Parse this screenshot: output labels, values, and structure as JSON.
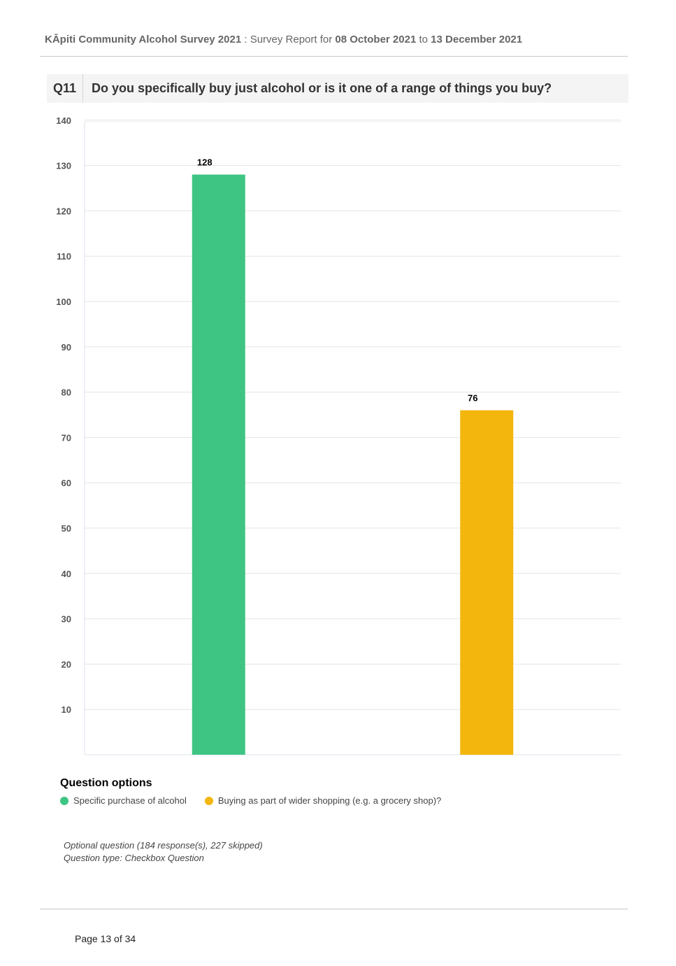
{
  "header": {
    "survey_title": "KĀpiti Community Alcohol Survey 2021",
    "separator": " : ",
    "report_label": "Survey Report for ",
    "date_from": "08 October 2021",
    "to_label": " to ",
    "date_to": "13 December 2021"
  },
  "question": {
    "number": "Q11",
    "text": "Do you specifically buy just alcohol or is it one of a range of things you buy?"
  },
  "chart_data": {
    "type": "bar",
    "categories": [
      "Specific purchase of alcohol",
      "Buying as part of wider shopping (e.g. a grocery shop)?"
    ],
    "values": [
      128,
      76
    ],
    "colors": [
      "#3fc583",
      "#f3b60d"
    ],
    "yticks": [
      10,
      20,
      30,
      40,
      50,
      60,
      70,
      80,
      90,
      100,
      110,
      120,
      130,
      140
    ],
    "ylim": [
      0,
      140
    ],
    "grid": true,
    "title": "",
    "xlabel": "",
    "ylabel": ""
  },
  "legend": {
    "title": "Question options",
    "items": [
      {
        "label": "Specific purchase of alcohol",
        "color": "#3fc583"
      },
      {
        "label": "Buying as part of wider shopping (e.g. a grocery shop)?",
        "color": "#f3b60d"
      }
    ]
  },
  "notes": {
    "optional": "Optional question (184 response(s), 227 skipped)",
    "type": "Question type: Checkbox Question"
  },
  "footer": {
    "page": "Page 13 of 34"
  }
}
